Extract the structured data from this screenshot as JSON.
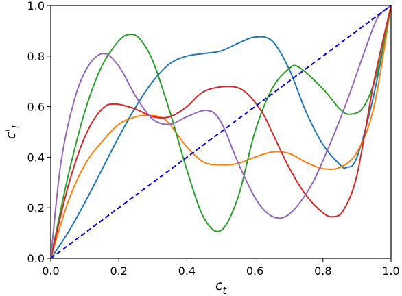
{
  "chart_data": {
    "type": "line",
    "xlabel": "c_t",
    "ylabel": "c'_t",
    "xlim": [
      0.0,
      1.0
    ],
    "ylim": [
      0.0,
      1.0
    ],
    "grid": false,
    "legend": "none",
    "xticks": [
      0.0,
      0.2,
      0.4,
      0.6,
      0.8,
      1.0
    ],
    "yticks": [
      0.0,
      0.2,
      0.4,
      0.6,
      0.8,
      1.0
    ],
    "xtick_labels": [
      "0.0",
      "0.2",
      "0.4",
      "0.6",
      "0.8",
      "1.0"
    ],
    "ytick_labels": [
      "0.0",
      "0.2",
      "0.4",
      "0.6",
      "0.8",
      "1.0"
    ],
    "series": [
      {
        "color": "#1f77b4",
        "style": "solid",
        "x": [
          0.0,
          0.05,
          0.1,
          0.15,
          0.2,
          0.25,
          0.3,
          0.35,
          0.4,
          0.45,
          0.5,
          0.55,
          0.6,
          0.65,
          0.7,
          0.75,
          0.8,
          0.85,
          0.87,
          0.9,
          0.95,
          1.0
        ],
        "y": [
          0.0,
          0.1,
          0.22,
          0.35,
          0.48,
          0.6,
          0.7,
          0.77,
          0.8,
          0.81,
          0.82,
          0.85,
          0.875,
          0.86,
          0.75,
          0.58,
          0.45,
          0.37,
          0.36,
          0.4,
          0.65,
          1.0
        ]
      },
      {
        "color": "#ff7f0e",
        "style": "solid",
        "x": [
          0.0,
          0.05,
          0.1,
          0.15,
          0.2,
          0.25,
          0.28,
          0.32,
          0.35,
          0.4,
          0.45,
          0.5,
          0.55,
          0.6,
          0.65,
          0.7,
          0.75,
          0.8,
          0.85,
          0.9,
          0.95,
          1.0
        ],
        "y": [
          0.0,
          0.22,
          0.37,
          0.46,
          0.53,
          0.56,
          0.565,
          0.56,
          0.53,
          0.44,
          0.38,
          0.37,
          0.375,
          0.4,
          0.42,
          0.415,
          0.38,
          0.355,
          0.36,
          0.42,
          0.6,
          1.0
        ]
      },
      {
        "color": "#2ca02c",
        "style": "solid",
        "x": [
          0.0,
          0.05,
          0.1,
          0.15,
          0.2,
          0.23,
          0.26,
          0.3,
          0.35,
          0.4,
          0.45,
          0.5,
          0.55,
          0.6,
          0.65,
          0.7,
          0.73,
          0.8,
          0.85,
          0.88,
          0.92,
          0.96,
          1.0
        ],
        "y": [
          0.0,
          0.32,
          0.58,
          0.76,
          0.86,
          0.885,
          0.87,
          0.78,
          0.58,
          0.35,
          0.16,
          0.11,
          0.24,
          0.5,
          0.67,
          0.75,
          0.755,
          0.67,
          0.59,
          0.57,
          0.6,
          0.74,
          1.0
        ]
      },
      {
        "color": "#d62728",
        "style": "solid",
        "x": [
          0.0,
          0.05,
          0.1,
          0.15,
          0.19,
          0.25,
          0.3,
          0.35,
          0.4,
          0.45,
          0.52,
          0.57,
          0.62,
          0.65,
          0.7,
          0.75,
          0.8,
          0.83,
          0.86,
          0.9,
          0.95,
          1.0
        ],
        "y": [
          0.0,
          0.28,
          0.48,
          0.59,
          0.61,
          0.59,
          0.56,
          0.56,
          0.6,
          0.66,
          0.68,
          0.66,
          0.58,
          0.5,
          0.36,
          0.25,
          0.18,
          0.165,
          0.19,
          0.33,
          0.7,
          1.0
        ]
      },
      {
        "color": "#9467bd",
        "style": "solid",
        "x": [
          0.0,
          0.03,
          0.07,
          0.11,
          0.155,
          0.2,
          0.25,
          0.3,
          0.35,
          0.4,
          0.46,
          0.5,
          0.55,
          0.6,
          0.64,
          0.68,
          0.72,
          0.77,
          0.82,
          0.87,
          0.92,
          0.96,
          1.0
        ],
        "y": [
          0.0,
          0.38,
          0.63,
          0.76,
          0.81,
          0.76,
          0.64,
          0.55,
          0.53,
          0.56,
          0.585,
          0.54,
          0.38,
          0.24,
          0.175,
          0.16,
          0.2,
          0.3,
          0.45,
          0.62,
          0.81,
          0.95,
          1.0
        ]
      },
      {
        "color": "#0000ee",
        "style": "dashed",
        "x": [
          0.0,
          1.0
        ],
        "y": [
          0.0,
          1.0
        ]
      }
    ]
  }
}
